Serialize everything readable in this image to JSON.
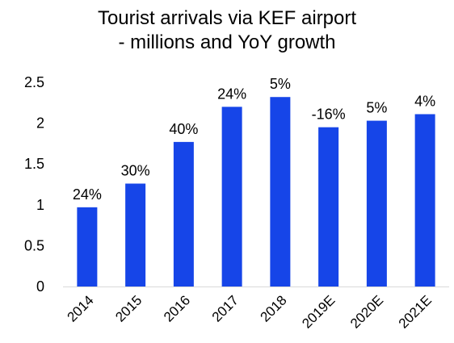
{
  "chart_data": {
    "type": "bar",
    "title_lines": [
      "Tourist arrivals via KEF airport",
      "- millions and YoY growth"
    ],
    "categories": [
      "2014",
      "2015",
      "2016",
      "2017",
      "2018",
      "2019E",
      "2020E",
      "2021E"
    ],
    "values": [
      0.97,
      1.26,
      1.77,
      2.2,
      2.32,
      1.95,
      2.03,
      2.11
    ],
    "data_labels": [
      "24%",
      "30%",
      "40%",
      "24%",
      "5%",
      "-16%",
      "5%",
      "4%"
    ],
    "yticks": [
      "0",
      "0.5",
      "1",
      "1.5",
      "2",
      "2.5"
    ],
    "ylim": [
      0,
      2.5
    ],
    "bar_color": "#1645e8",
    "grid": false,
    "legend": "none"
  }
}
